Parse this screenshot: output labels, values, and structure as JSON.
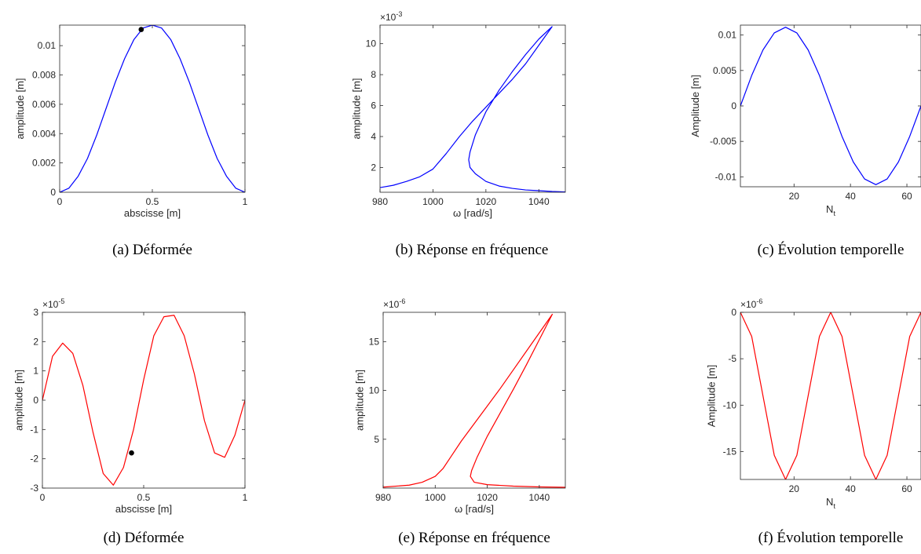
{
  "chart_data": [
    {
      "type": "line",
      "caption": "(a) Déformée",
      "xlabel": "abscisse [m]",
      "ylabel": "amplitude [m]",
      "xlim": [
        0,
        1
      ],
      "ylim": [
        0,
        0.0114
      ],
      "xticks": [
        0,
        0.5,
        1
      ],
      "xtick_labels": [
        "0",
        "0.5",
        "1"
      ],
      "yticks": [
        0,
        0.002,
        0.004,
        0.006,
        0.008,
        0.01
      ],
      "ytick_labels": [
        "0",
        "0.002",
        "0.004",
        "0.006",
        "0.008",
        "0.01"
      ],
      "exponent": "",
      "series": [
        {
          "color": "#0000ff",
          "x": [
            0,
            0.05,
            0.1,
            0.15,
            0.2,
            0.25,
            0.3,
            0.35,
            0.4,
            0.45,
            0.5,
            0.55,
            0.6,
            0.65,
            0.7,
            0.75,
            0.8,
            0.85,
            0.9,
            0.95,
            1
          ],
          "y": [
            0,
            0.00028,
            0.0011,
            0.0023,
            0.0039,
            0.0057,
            0.0075,
            0.0091,
            0.0104,
            0.0112,
            0.0114,
            0.0112,
            0.0104,
            0.0091,
            0.0075,
            0.0057,
            0.0039,
            0.0023,
            0.0011,
            0.00028,
            0
          ]
        }
      ],
      "marker": {
        "x": 0.44,
        "y": 0.0111,
        "color": "#000000"
      }
    },
    {
      "type": "line",
      "caption": "(b) Réponse en fréquence",
      "xlabel": "ω [rad/s]",
      "ylabel": "amplitude [m]",
      "xlim": [
        980,
        1050
      ],
      "ylim": [
        0.4,
        11.2
      ],
      "xticks": [
        980,
        1000,
        1020,
        1040
      ],
      "xtick_labels": [
        "980",
        "1000",
        "1020",
        "1040"
      ],
      "yticks": [
        2,
        4,
        6,
        8,
        10
      ],
      "ytick_labels": [
        "2",
        "4",
        "6",
        "8",
        "10"
      ],
      "exponent": "×10-3",
      "exponent_base": "×10",
      "exponent_power": "-3",
      "series": [
        {
          "color": "#0000ff",
          "x": [
            980,
            985,
            990,
            995,
            1000,
            1005,
            1010,
            1015,
            1020,
            1025,
            1030,
            1035,
            1040,
            1045,
            1040,
            1035,
            1030,
            1025,
            1020,
            1016,
            1014,
            1013.5,
            1014,
            1016,
            1020,
            1025,
            1030,
            1035,
            1040,
            1045,
            1050
          ],
          "y": [
            0.7,
            0.85,
            1.1,
            1.4,
            1.9,
            2.9,
            4.0,
            5.0,
            5.9,
            6.8,
            7.7,
            8.7,
            9.9,
            11.1,
            10.3,
            9.3,
            8.2,
            7.0,
            5.6,
            4.1,
            3.0,
            2.5,
            2.0,
            1.6,
            1.1,
            0.8,
            0.65,
            0.55,
            0.5,
            0.45,
            0.42
          ]
        }
      ]
    },
    {
      "type": "line",
      "caption": "(c) Évolution temporelle",
      "xlabel": "Nt",
      "xlabel_main": "N",
      "xlabel_sub": "t",
      "ylabel": "Amplitude [m]",
      "xlim": [
        1,
        65
      ],
      "ylim": [
        -0.0114,
        0.0114
      ],
      "xticks": [
        20,
        40,
        60
      ],
      "xtick_labels": [
        "20",
        "40",
        "60"
      ],
      "yticks": [
        -0.01,
        -0.005,
        0,
        0.005,
        0.01
      ],
      "ytick_labels": [
        "-0.01",
        "-0.005",
        "0",
        "0.005",
        "0.01"
      ],
      "exponent": "",
      "series": [
        {
          "color": "#0000ff",
          "x": [
            1,
            5,
            9,
            13,
            17,
            21,
            25,
            29,
            33,
            37,
            41,
            45,
            49,
            53,
            57,
            61,
            65
          ],
          "y": [
            0,
            0.0043,
            0.0079,
            0.0103,
            0.0111,
            0.0103,
            0.0079,
            0.0043,
            0,
            -0.0043,
            -0.0079,
            -0.0103,
            -0.0111,
            -0.0103,
            -0.0079,
            -0.0043,
            0
          ]
        }
      ]
    },
    {
      "type": "line",
      "caption": "(d) Déformée",
      "xlabel": "abscisse [m]",
      "ylabel": "amplitude [m]",
      "xlim": [
        0,
        1
      ],
      "ylim": [
        -3,
        3
      ],
      "xticks": [
        0,
        0.5,
        1
      ],
      "xtick_labels": [
        "0",
        "0.5",
        "1"
      ],
      "yticks": [
        -3,
        -2,
        -1,
        0,
        1,
        2,
        3
      ],
      "ytick_labels": [
        "-3",
        "-2",
        "-1",
        "0",
        "1",
        "2",
        "3"
      ],
      "exponent": "×10-5",
      "exponent_base": "×10",
      "exponent_power": "-5",
      "series": [
        {
          "color": "#ff0000",
          "x": [
            0,
            0.05,
            0.1,
            0.15,
            0.2,
            0.25,
            0.3,
            0.35,
            0.4,
            0.45,
            0.5,
            0.55,
            0.6,
            0.65,
            0.7,
            0.75,
            0.8,
            0.85,
            0.9,
            0.95,
            1
          ],
          "y": [
            0,
            1.5,
            1.95,
            1.6,
            0.5,
            -1.1,
            -2.5,
            -2.9,
            -2.3,
            -1.0,
            0.7,
            2.2,
            2.85,
            2.9,
            2.2,
            0.9,
            -0.7,
            -1.8,
            -1.95,
            -1.2,
            0
          ]
        }
      ],
      "marker": {
        "x": 0.44,
        "y": -1.8,
        "color": "#000000"
      }
    },
    {
      "type": "line",
      "caption": "(e) Réponse en fréquence",
      "xlabel": "ω [rad/s]",
      "ylabel": "amplitude [m]",
      "xlim": [
        980,
        1050
      ],
      "ylim": [
        0,
        18
      ],
      "xticks": [
        980,
        1000,
        1020,
        1040
      ],
      "xtick_labels": [
        "980",
        "1000",
        "1020",
        "1040"
      ],
      "yticks": [
        5,
        10,
        15
      ],
      "ytick_labels": [
        "5",
        "10",
        "15"
      ],
      "exponent": "×10-6",
      "exponent_base": "×10",
      "exponent_power": "-6",
      "series": [
        {
          "color": "#ff0000",
          "x": [
            980,
            990,
            995,
            1000,
            1003,
            1006,
            1010,
            1015,
            1020,
            1025,
            1030,
            1035,
            1040,
            1045,
            1040,
            1035,
            1030,
            1025,
            1020,
            1016,
            1014,
            1013.5,
            1015,
            1020,
            1030,
            1040,
            1050
          ],
          "y": [
            0.1,
            0.3,
            0.6,
            1.2,
            2.0,
            3.2,
            4.8,
            6.6,
            8.4,
            10.2,
            12.1,
            14.0,
            15.9,
            17.8,
            15.2,
            12.6,
            10.1,
            7.7,
            5.3,
            3.1,
            1.8,
            1.2,
            0.6,
            0.35,
            0.2,
            0.12,
            0.08
          ]
        }
      ]
    },
    {
      "type": "line",
      "caption": "(f) Évolution temporelle",
      "xlabel": "Nt",
      "xlabel_main": "N",
      "xlabel_sub": "t",
      "ylabel": "Amplitude [m]",
      "xlim": [
        1,
        65
      ],
      "ylim": [
        -18,
        0
      ],
      "xticks": [
        20,
        40,
        60
      ],
      "xtick_labels": [
        "20",
        "40",
        "60"
      ],
      "yticks": [
        -15,
        -10,
        -5,
        0
      ],
      "ytick_labels": [
        "-15",
        "-10",
        "-5",
        "0"
      ],
      "exponent": "×10-6",
      "exponent_base": "×10",
      "exponent_power": "-6",
      "series": [
        {
          "color": "#ff0000",
          "x": [
            1,
            5,
            9,
            13,
            17,
            21,
            25,
            29,
            33,
            37,
            41,
            45,
            49,
            53,
            57,
            61,
            65
          ],
          "y": [
            0,
            -2.6,
            -9.0,
            -15.4,
            -18.0,
            -15.4,
            -9.0,
            -2.6,
            0,
            -2.6,
            -9.0,
            -15.4,
            -18.0,
            -15.4,
            -9.0,
            -2.6,
            0
          ]
        }
      ]
    }
  ]
}
